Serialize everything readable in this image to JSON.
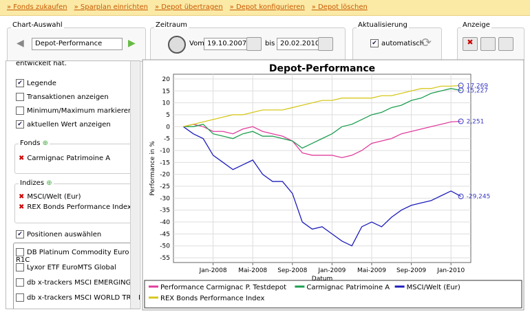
{
  "nav": [
    "Fonds zukaufen",
    "Sparplan einrichten",
    "Depot übertragen",
    "Depot konfigurieren",
    "Depot löschen"
  ],
  "toolbar": {
    "chart_label": "Chart-Auswahl",
    "chart_select": "Depot-Performance",
    "period_label": "Zeitraum",
    "from_label": "Vom",
    "from": "19.10.2007",
    "to_label": "bis",
    "to": "20.02.2010",
    "update_label": "Aktualisierung",
    "update_option": "automatisch",
    "update_checked": true,
    "display_label": "Anzeige"
  },
  "sidebar": {
    "intro": "entwickelt hat.",
    "options": [
      {
        "label": "Legende",
        "checked": true
      },
      {
        "label": "Transaktionen anzeigen",
        "checked": false
      },
      {
        "label": "Minimum/Maximum markieren",
        "checked": false
      },
      {
        "label": "aktuellen Wert anzeigen",
        "checked": true
      }
    ],
    "fonds_title": "Fonds",
    "fonds": [
      "Carmignac Patrimoine A"
    ],
    "indizes_title": "Indizes",
    "indizes": [
      "MSCI/Welt (Eur)",
      "REX Bonds Performance Index"
    ],
    "positions": {
      "label": "Positionen auswählen",
      "checked": true
    },
    "positions_list": [
      "DB Platinum Commodity Euro R1C",
      "Lyxor ETF EuroMTS Global",
      "db x-trackers MSCI EMERGING MKT",
      "db x-trackers MSCI WORLD TRN IN"
    ]
  },
  "chart_data": {
    "type": "line",
    "title": "Depot-Performance",
    "y_label": "Performance in %",
    "x_label": "Datum",
    "grid": true,
    "legend": "bottom",
    "x": [
      "2007-10",
      "2007-11",
      "2007-12",
      "2008-01",
      "2008-02",
      "2008-03",
      "2008-04",
      "2008-05",
      "2008-06",
      "2008-07",
      "2008-08",
      "2008-09",
      "2008-10",
      "2008-11",
      "2008-12",
      "2009-01",
      "2009-02",
      "2009-03",
      "2009-04",
      "2009-05",
      "2009-06",
      "2009-07",
      "2009-08",
      "2009-09",
      "2009-10",
      "2009-11",
      "2009-12",
      "2010-01",
      "2010-02"
    ],
    "xlim": [
      "2007-09",
      "2010-03"
    ],
    "xticks": [
      {
        "value": "2008-01",
        "label": "Jan-2008"
      },
      {
        "value": "2008-05",
        "label": "Mai-2008"
      },
      {
        "value": "2008-09",
        "label": "Sep-2008"
      },
      {
        "value": "2009-01",
        "label": "Jan-2009"
      },
      {
        "value": "2009-05",
        "label": "Mai-2009"
      },
      {
        "value": "2009-09",
        "label": "Sep-2009"
      },
      {
        "value": "2010-01",
        "label": "Jan-2010"
      }
    ],
    "ylim": [
      -57,
      22
    ],
    "yticks": [
      20,
      15,
      10,
      5,
      0,
      -5,
      -10,
      -15,
      -20,
      -25,
      -30,
      -35,
      -40,
      -45,
      -50,
      -55
    ],
    "series": [
      {
        "name": "Performance Carmignac P. Testdepot",
        "color": "#e03c9c",
        "values": [
          0,
          1,
          0,
          -2,
          -2,
          -3,
          -1,
          0,
          -2,
          -3,
          -4,
          -6,
          -11,
          -12,
          -12,
          -12,
          -13,
          -12,
          -10,
          -7,
          -6,
          -5,
          -3,
          -2,
          -1,
          0,
          1,
          2,
          2.251
        ],
        "value_labels": [
          null,
          null,
          null,
          null,
          null,
          null,
          null,
          null,
          null,
          null,
          null,
          null,
          null,
          null,
          null,
          null,
          null,
          null,
          null,
          null,
          null,
          null,
          null,
          null,
          null,
          null,
          null,
          null,
          "2,251"
        ]
      },
      {
        "name": "Carmignac Patrimoine A",
        "color": "#1e9e50",
        "values": [
          0,
          0,
          1,
          -3,
          -4,
          -5,
          -3,
          -2,
          -4,
          -4,
          -5,
          -6,
          -9,
          -7,
          -5,
          -3,
          0,
          1,
          3,
          5,
          6,
          8,
          9,
          11,
          12,
          14,
          15,
          16,
          15.227
        ],
        "value_labels": [
          null,
          null,
          null,
          null,
          null,
          null,
          null,
          null,
          null,
          null,
          null,
          null,
          null,
          null,
          null,
          null,
          null,
          null,
          null,
          null,
          null,
          null,
          null,
          null,
          null,
          null,
          null,
          null,
          "15,227"
        ]
      },
      {
        "name": "MSCI/Welt (Eur)",
        "color": "#1c1cbc",
        "values": [
          0,
          -3,
          -5,
          -12,
          -15,
          -18,
          -16,
          -14,
          -20,
          -23,
          -23,
          -28,
          -40,
          -43,
          -42,
          -45,
          -48,
          -50,
          -42,
          -40,
          -42,
          -38,
          -35,
          -33,
          -32,
          -31,
          -29,
          -27,
          -29.245
        ],
        "value_labels": [
          null,
          null,
          null,
          null,
          null,
          null,
          null,
          null,
          null,
          null,
          null,
          null,
          null,
          null,
          null,
          null,
          null,
          null,
          null,
          null,
          null,
          null,
          null,
          null,
          null,
          null,
          null,
          null,
          "-29,245"
        ]
      },
      {
        "name": "REX Bonds Performance Index",
        "color": "#d6c81c",
        "values": [
          0,
          1,
          2,
          3,
          4,
          5,
          5,
          6,
          7,
          7,
          7,
          8,
          9,
          10,
          11,
          11,
          12,
          12,
          12,
          12,
          13,
          13,
          14,
          15,
          16,
          16,
          17,
          17,
          17.269
        ],
        "value_labels": [
          null,
          null,
          null,
          null,
          null,
          null,
          null,
          null,
          null,
          null,
          null,
          null,
          null,
          null,
          null,
          null,
          null,
          null,
          null,
          null,
          null,
          null,
          null,
          null,
          null,
          null,
          null,
          null,
          "17,269"
        ]
      }
    ]
  }
}
